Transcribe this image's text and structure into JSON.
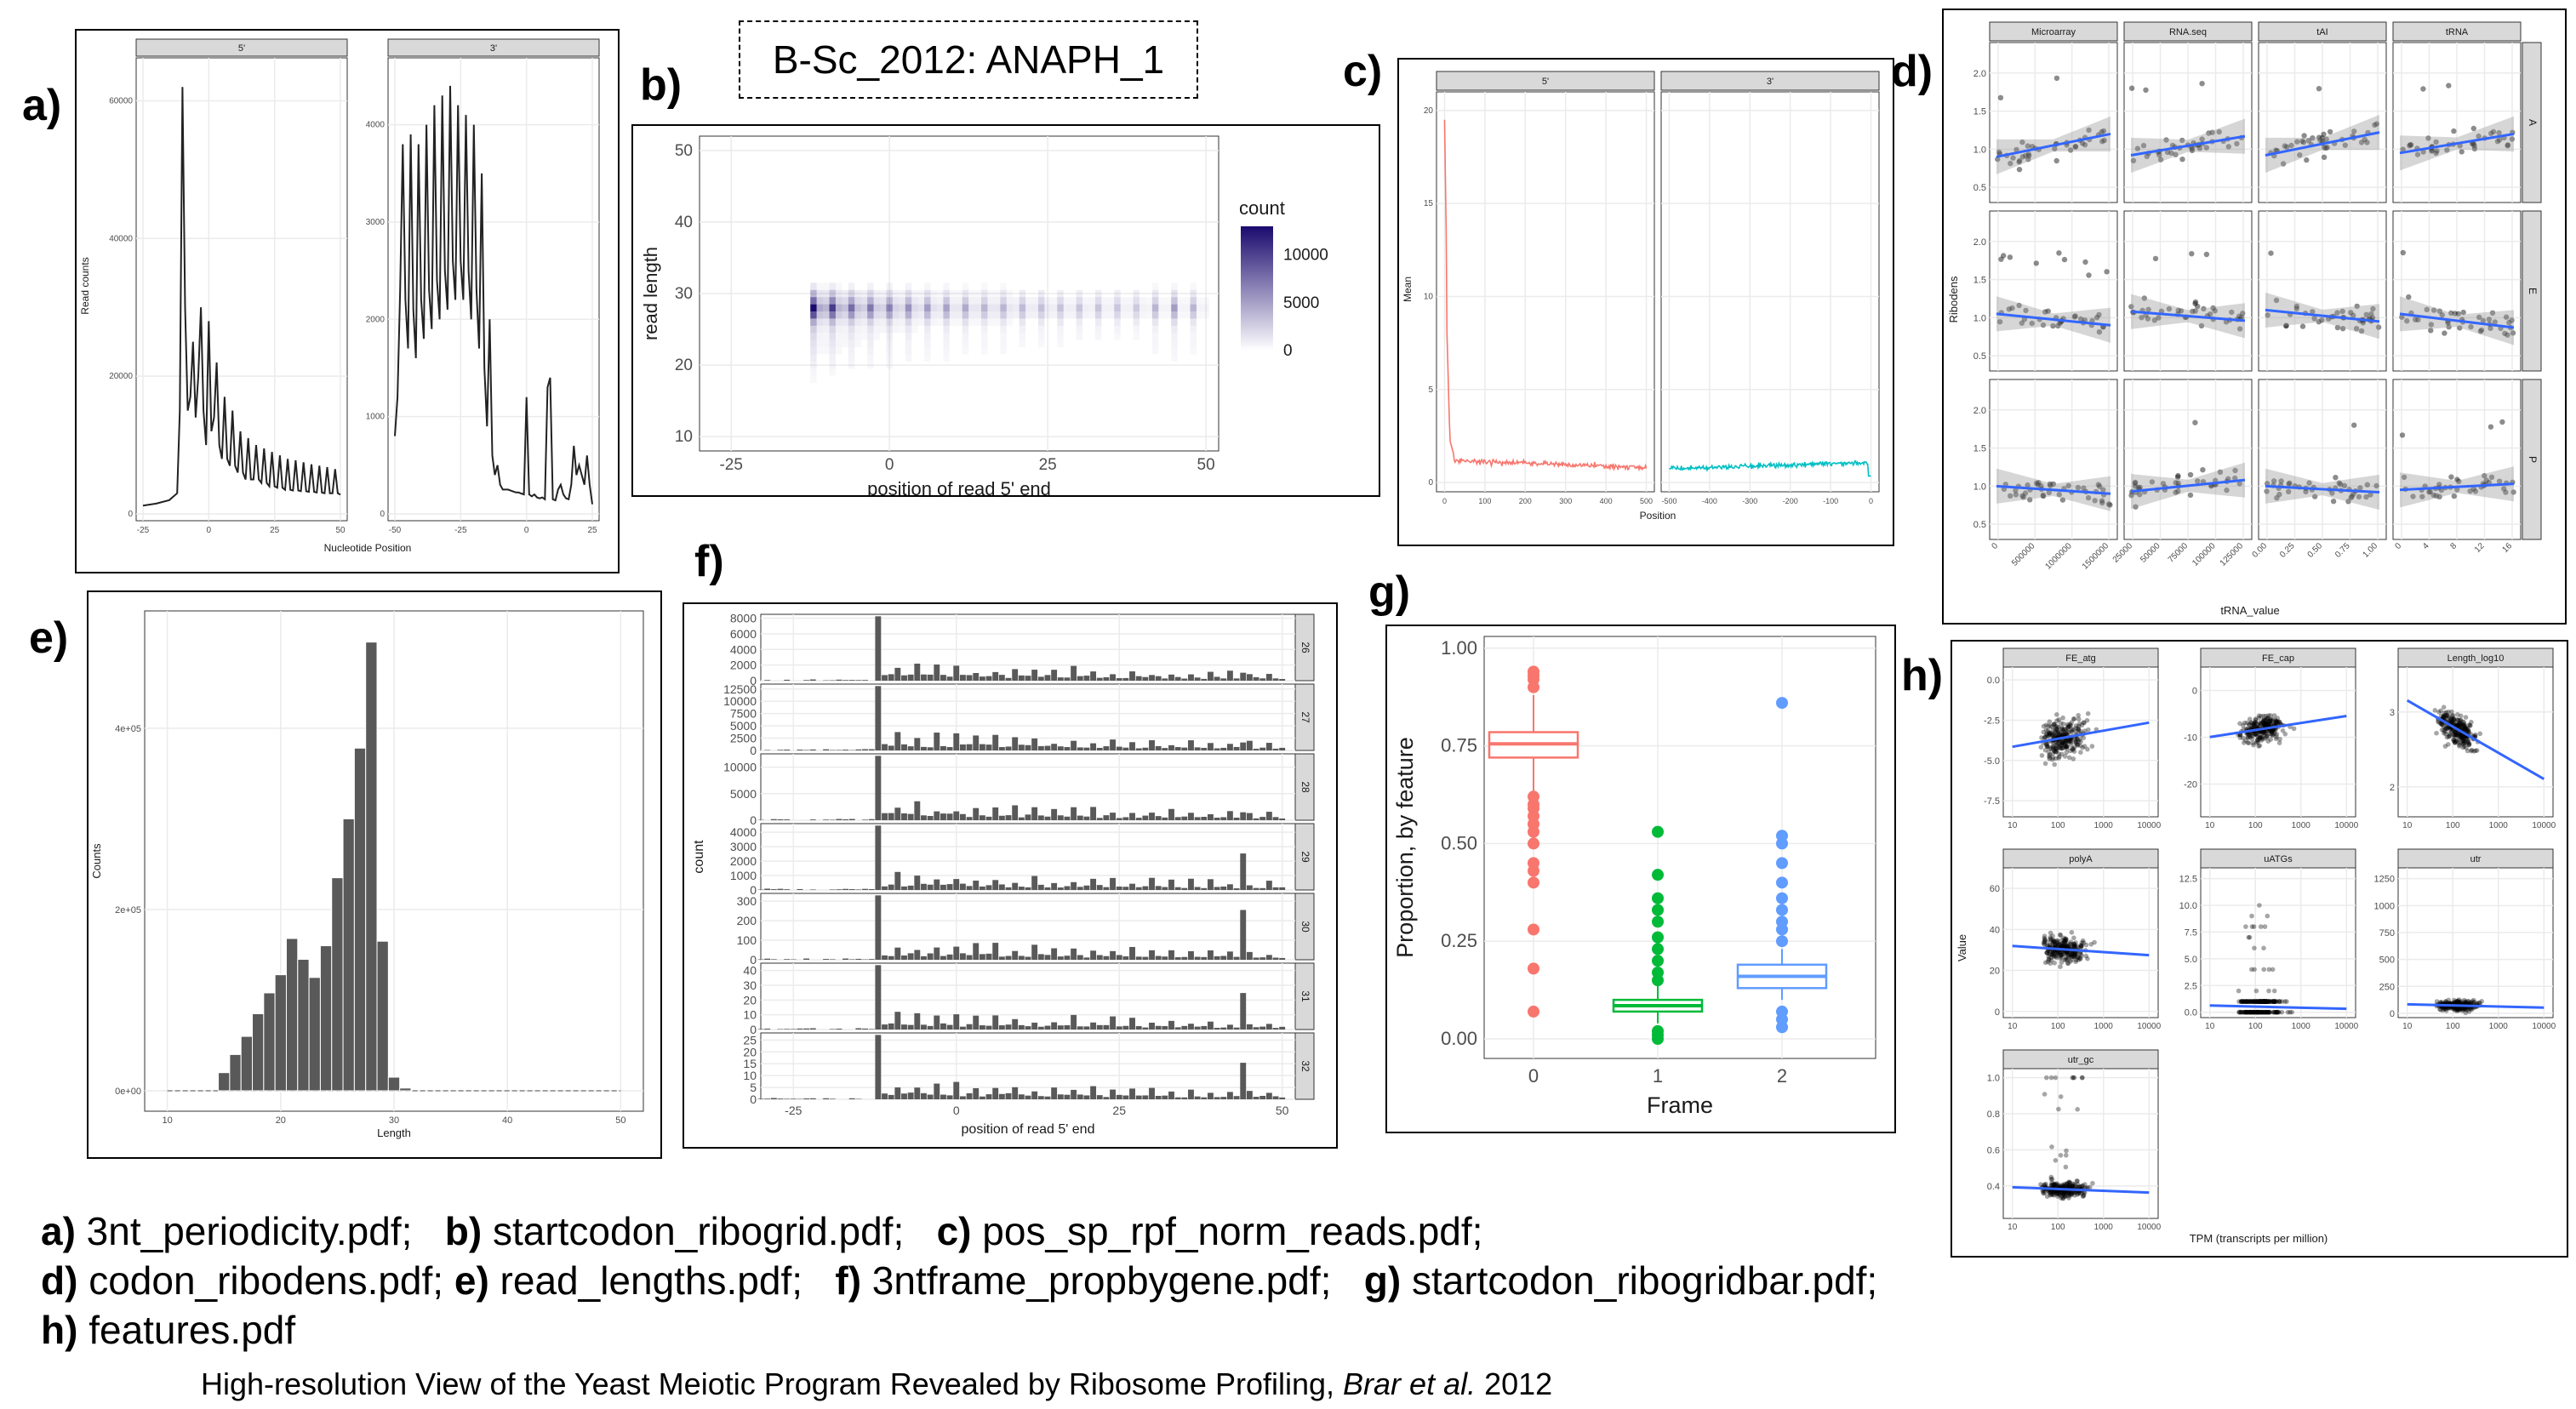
{
  "title_box": "B-Sc_2012: ANAPH_1",
  "panel_labels": {
    "a": "a)",
    "b": "b)",
    "c": "c)",
    "d": "d)",
    "e": "e)",
    "f": "f)",
    "g": "g)",
    "h": "h)"
  },
  "captions": {
    "line1": [
      {
        "label": "a)",
        "file": " 3nt_periodicity.pdf;"
      },
      {
        "label": "b)",
        "file": " startcodon_ribogrid.pdf;"
      },
      {
        "label": "c)",
        "file": " pos_sp_rpf_norm_reads.pdf;"
      }
    ],
    "line2": [
      {
        "label": "d)",
        "file": " codon_ribodens.pdf;"
      },
      {
        "label": "e)",
        "file": " read_lengths.pdf;"
      },
      {
        "label": "f)",
        "file": " 3ntframe_propbygene.pdf;"
      },
      {
        "label": "g)",
        "file": " startcodon_ribogridbar.pdf;"
      }
    ],
    "line3": [
      {
        "label": "h)",
        "file": " features.pdf"
      }
    ]
  },
  "footer": {
    "text": "High-resolution View of the Yeast Meiotic Program Revealed by Ribosome Profiling, ",
    "authors": "Brar et al.",
    "year": " 2012"
  },
  "chart_data": [
    {
      "id": "a",
      "type": "line",
      "facets": [
        "5'",
        "3'"
      ],
      "xlabel": "Nucleotide Position",
      "ylabel": "Read counts",
      "facet_5": {
        "xticks": [
          "-25",
          "0",
          "25",
          "50"
        ],
        "xlim": [
          -25,
          50
        ],
        "yticks": [
          "0",
          "20000",
          "40000",
          "60000"
        ],
        "ylim": [
          0,
          65000
        ],
        "x": [
          -25,
          -20,
          -15,
          -12,
          -11,
          -10,
          -9,
          -8,
          -7,
          -6,
          -5,
          -4,
          -3,
          -2,
          -1,
          0,
          1,
          2,
          3,
          4,
          5,
          6,
          7,
          8,
          9,
          10,
          11,
          12,
          13,
          14,
          15,
          16,
          17,
          18,
          19,
          20,
          21,
          22,
          23,
          24,
          25,
          26,
          27,
          28,
          29,
          30,
          31,
          32,
          33,
          34,
          35,
          36,
          37,
          38,
          39,
          40,
          41,
          42,
          43,
          44,
          45,
          46,
          47,
          48,
          49,
          50
        ],
        "y": [
          1200,
          1500,
          2000,
          3000,
          15000,
          62000,
          30000,
          15000,
          17000,
          25000,
          14000,
          20000,
          30000,
          15000,
          10000,
          28000,
          12000,
          14000,
          22000,
          10000,
          8000,
          17000,
          8000,
          7000,
          15000,
          7000,
          6000,
          12000,
          6000,
          5000,
          11000,
          5000,
          5000,
          10000,
          5000,
          4500,
          9500,
          4500,
          4000,
          9000,
          4000,
          3800,
          8500,
          3800,
          3500,
          8000,
          3500,
          3400,
          7800,
          3400,
          3300,
          7500,
          3300,
          3200,
          7200,
          3200,
          3100,
          7000,
          3100,
          3000,
          6800,
          3000,
          3000,
          6500,
          3000,
          2800
        ]
      },
      "facet_3": {
        "xticks": [
          "-50",
          "-25",
          "0",
          "25"
        ],
        "xlim": [
          -50,
          25
        ],
        "yticks": [
          "0",
          "1000",
          "2000",
          "3000",
          "4000"
        ],
        "ylim": [
          0,
          4600
        ],
        "x": [
          -50,
          -49,
          -48,
          -47,
          -46,
          -45,
          -44,
          -43,
          -42,
          -41,
          -40,
          -39,
          -38,
          -37,
          -36,
          -35,
          -34,
          -33,
          -32,
          -31,
          -30,
          -29,
          -28,
          -27,
          -26,
          -25,
          -24,
          -23,
          -22,
          -21,
          -20,
          -19,
          -18,
          -17,
          -16,
          -15,
          -14,
          -13,
          -12,
          -11,
          -10,
          -9,
          -8,
          -7,
          -6,
          -5,
          -4,
          -3,
          -2,
          -1,
          0,
          1,
          2,
          3,
          4,
          5,
          6,
          7,
          8,
          9,
          10,
          11,
          12,
          13,
          14,
          15,
          16,
          17,
          18,
          19,
          20,
          21,
          22,
          23,
          24,
          25
        ],
        "y": [
          800,
          1200,
          2300,
          3800,
          2200,
          1700,
          3900,
          2100,
          1600,
          3800,
          2200,
          1800,
          4000,
          2300,
          1900,
          4200,
          2400,
          2000,
          4300,
          2500,
          2100,
          4400,
          2600,
          2200,
          4200,
          2600,
          2200,
          4100,
          2500,
          2000,
          4000,
          2300,
          1700,
          3500,
          1500,
          900,
          2000,
          600,
          400,
          500,
          300,
          250,
          250,
          250,
          240,
          230,
          220,
          220,
          210,
          200,
          1200,
          200,
          180,
          200,
          170,
          160,
          170,
          150,
          1300,
          1400,
          150,
          140,
          250,
          300,
          200,
          160,
          150,
          300,
          700,
          400,
          500,
          400,
          300,
          600,
          300,
          100
        ]
      }
    },
    {
      "id": "b",
      "type": "heatmap",
      "xlabel": "position of read 5' end",
      "ylabel": "read length",
      "xticks": [
        "-25",
        "0",
        "25",
        "50"
      ],
      "xlim": [
        -30,
        52
      ],
      "yticks": [
        "10",
        "20",
        "30",
        "40",
        "50"
      ],
      "ylim": [
        8,
        52
      ],
      "legend_title": "count",
      "legend_ticks": [
        "10000",
        "5000",
        "0"
      ],
      "legend_max": 13000,
      "color_low": "#ffffff",
      "color_high": "#1a0a6e",
      "rows": [
        {
          "len": 26,
          "w": 0.35
        },
        {
          "len": 27,
          "w": 0.7
        },
        {
          "len": 28,
          "w": 1.0
        },
        {
          "len": 29,
          "w": 0.6
        },
        {
          "len": 30,
          "w": 0.3
        },
        {
          "len": 25,
          "w": 0.2
        },
        {
          "len": 24,
          "w": 0.15
        },
        {
          "len": 23,
          "w": 0.12
        },
        {
          "len": 22,
          "w": 0.1
        },
        {
          "len": 21,
          "w": 0.08
        },
        {
          "len": 20,
          "w": 0.06
        },
        {
          "len": 31,
          "w": 0.1
        },
        {
          "len": 19,
          "w": 0.04
        },
        {
          "len": 18,
          "w": 0.03
        }
      ],
      "start_x": -12,
      "end_x": 50,
      "col_pattern": [
        1.0,
        0.35,
        0.3,
        0.8,
        0.3,
        0.25,
        0.6,
        0.25,
        0.2,
        0.55,
        0.2,
        0.18,
        0.5,
        0.18,
        0.15,
        0.45,
        0.15,
        0.12,
        0.4,
        0.12,
        0.1,
        0.38,
        0.1,
        0.1,
        0.35,
        0.1,
        0.1,
        0.3,
        0.1,
        0.1,
        0.3,
        0.1,
        0.08,
        0.28,
        0.08,
        0.08,
        0.26,
        0.08,
        0.07,
        0.25,
        0.07,
        0.07,
        0.24,
        0.07,
        0.06,
        0.24,
        0.06,
        0.06,
        0.23,
        0.06,
        0.06,
        0.22,
        0.06,
        0.05,
        0.3,
        0.05,
        0.05,
        0.4,
        0.05,
        0.05,
        0.3,
        0.05,
        0.05
      ]
    },
    {
      "id": "c",
      "type": "line",
      "facets": [
        "5'",
        "3'"
      ],
      "xlabel": "Position",
      "ylabel": "Mean",
      "facet_5": {
        "xticks": [
          "0",
          "100",
          "200",
          "300",
          "400",
          "500"
        ],
        "xlim": [
          -20,
          520
        ],
        "yticks": [
          "0",
          "5",
          "10",
          "15",
          "20"
        ],
        "ylim": [
          -0.5,
          21
        ],
        "color": "#f8766d"
      },
      "facet_3": {
        "xticks": [
          "-500",
          "-400",
          "-300",
          "-200",
          "-100",
          "0"
        ],
        "xlim": [
          -520,
          20
        ],
        "yticks": [],
        "ylim": [
          -0.5,
          21
        ],
        "color": "#00bfc4"
      }
    },
    {
      "id": "d",
      "type": "scatter",
      "col_facets": [
        "Microarray",
        "RNA.seq",
        "tAI",
        "tRNA"
      ],
      "row_facets": [
        "A",
        "E",
        "P"
      ],
      "xlabel": "tRNA_value",
      "ylabel": "Ribodens",
      "yticks": [
        "0.5",
        "1.0",
        "1.5",
        "2.0"
      ],
      "ylim": [
        0.3,
        2.4
      ],
      "xticks": [
        [
          "0",
          "500000",
          "1000000",
          "1500000"
        ],
        [
          "25000",
          "50000",
          "75000",
          "100000",
          "125000"
        ],
        [
          "0.00",
          "0.25",
          "0.50",
          "0.75",
          "1.00"
        ],
        [
          "0",
          "4",
          "8",
          "12",
          "16"
        ]
      ],
      "slopes": [
        [
          0.3,
          0.25,
          0.3,
          0.25
        ],
        [
          -0.15,
          -0.12,
          -0.15,
          -0.18
        ],
        [
          -0.1,
          0.15,
          -0.08,
          0.08
        ]
      ],
      "intercepts": [
        [
          0.9,
          0.92,
          0.92,
          0.95
        ],
        [
          1.05,
          1.08,
          1.1,
          1.05
        ],
        [
          1.0,
          0.93,
          1.0,
          0.95
        ]
      ]
    },
    {
      "id": "e",
      "type": "bar",
      "xlabel": "Length",
      "ylabel": "Counts",
      "xticks": [
        "10",
        "20",
        "30",
        "40",
        "50"
      ],
      "xlim": [
        8,
        52
      ],
      "yticks": [
        "0e+00",
        "2e+05",
        "4e+05"
      ],
      "ylim": [
        0,
        520000
      ],
      "x": [
        15,
        16,
        17,
        18,
        19,
        20,
        21,
        22,
        23,
        24,
        25,
        26,
        27,
        28,
        29,
        30,
        31
      ],
      "values": [
        20000,
        40000,
        60000,
        85000,
        108000,
        128000,
        168000,
        145000,
        125000,
        160000,
        235000,
        300000,
        378000,
        495000,
        165000,
        15000,
        3000
      ]
    },
    {
      "id": "f",
      "type": "bar",
      "xlabel": "position of read 5' end",
      "ylabel": "count",
      "xticks": [
        "-25",
        "0",
        "25",
        "50"
      ],
      "xlim": [
        -30,
        52
      ],
      "facets": [
        {
          "name": "26",
          "yticks": [
            "0",
            "2000",
            "4000",
            "6000",
            "8000"
          ],
          "ymax": 8500
        },
        {
          "name": "27",
          "yticks": [
            "0",
            "2500",
            "5000",
            "7500",
            "10000",
            "12500"
          ],
          "ymax": 13500
        },
        {
          "name": "28",
          "yticks": [
            "0",
            "5000",
            "10000"
          ],
          "ymax": 12500
        },
        {
          "name": "29",
          "yticks": [
            "0",
            "1000",
            "2000",
            "3000",
            "4000"
          ],
          "ymax": 4600
        },
        {
          "name": "30",
          "yticks": [
            "0",
            "100",
            "200",
            "300"
          ],
          "ymax": 340
        },
        {
          "name": "31",
          "yticks": [
            "0",
            "10",
            "20",
            "30",
            "40"
          ],
          "ymax": 45
        },
        {
          "name": "32",
          "yticks": [
            "0",
            "5",
            "10",
            "15",
            "20",
            "25"
          ],
          "ymax": 28
        }
      ]
    },
    {
      "id": "g",
      "type": "box",
      "xlabel": "Frame",
      "ylabel": "Proportion, by feature",
      "categories": [
        "0",
        "1",
        "2"
      ],
      "yticks": [
        "0.00",
        "0.25",
        "0.50",
        "0.75",
        "1.00"
      ],
      "ylim": [
        0,
        1
      ],
      "colors": [
        "#f8766d",
        "#00ba38",
        "#619cff"
      ],
      "boxes": [
        {
          "q1": 0.72,
          "median": 0.755,
          "q3": 0.785,
          "wlo": 0.63,
          "whi": 0.88,
          "outliers": [
            0.07,
            0.18,
            0.28,
            0.4,
            0.43,
            0.45,
            0.5,
            0.53,
            0.55,
            0.57,
            0.59,
            0.6,
            0.62,
            0.9,
            0.92,
            0.93,
            0.94
          ]
        },
        {
          "q1": 0.07,
          "median": 0.085,
          "q3": 0.1,
          "wlo": 0.04,
          "whi": 0.14,
          "outliers": [
            0.0,
            0.01,
            0.02,
            0.15,
            0.17,
            0.2,
            0.23,
            0.26,
            0.3,
            0.33,
            0.36,
            0.42,
            0.53
          ]
        },
        {
          "q1": 0.13,
          "median": 0.16,
          "q3": 0.19,
          "wlo": 0.1,
          "whi": 0.23,
          "outliers": [
            0.03,
            0.05,
            0.07,
            0.25,
            0.28,
            0.3,
            0.33,
            0.36,
            0.4,
            0.45,
            0.5,
            0.52,
            0.86
          ]
        }
      ]
    },
    {
      "id": "h",
      "type": "scatter",
      "xlabel": "TPM (transcripts per million)",
      "ylabel": "Value",
      "xticks": [
        "10",
        "100",
        "1000",
        "10000"
      ],
      "facets": [
        {
          "name": "FE_atg",
          "yticks": [
            "-7.5",
            "-5.0",
            "-2.5",
            "0.0"
          ],
          "ylim": [
            -8.5,
            0.8
          ],
          "center": -3.5,
          "spread": 2.2,
          "slope": 0.5
        },
        {
          "name": "FE_cap",
          "yticks": [
            "-20",
            "-10",
            "0"
          ],
          "ylim": [
            -27,
            5
          ],
          "center": -8,
          "spread": 5,
          "slope": 1.5
        },
        {
          "name": "Length_log10",
          "yticks": [
            "2",
            "3"
          ],
          "ylim": [
            1.6,
            3.6
          ],
          "center": 2.7,
          "spread": 0.35,
          "slope": -0.35
        },
        {
          "name": "polyA",
          "yticks": [
            "0",
            "20",
            "40",
            "60"
          ],
          "ylim": [
            -3,
            70
          ],
          "center": 30,
          "spread": 10,
          "slope": -1.5
        },
        {
          "name": "uATGs",
          "yticks": [
            "0.0",
            "2.5",
            "5.0",
            "7.5",
            "10.0",
            "12.5"
          ],
          "ylim": [
            -0.5,
            13.5
          ],
          "center": 0.5,
          "spread": 0.8,
          "slope": -0.1
        },
        {
          "name": "utr",
          "yticks": [
            "0",
            "250",
            "500",
            "750",
            "1000",
            "1250"
          ],
          "ylim": [
            -40,
            1350
          ],
          "center": 70,
          "spread": 80,
          "slope": -10
        },
        {
          "name": "utr_gc",
          "yticks": [
            "0.4",
            "0.6",
            "0.8",
            "1.0"
          ],
          "ylim": [
            0.22,
            1.05
          ],
          "center": 0.38,
          "spread": 0.07,
          "slope": -0.01
        }
      ]
    }
  ]
}
